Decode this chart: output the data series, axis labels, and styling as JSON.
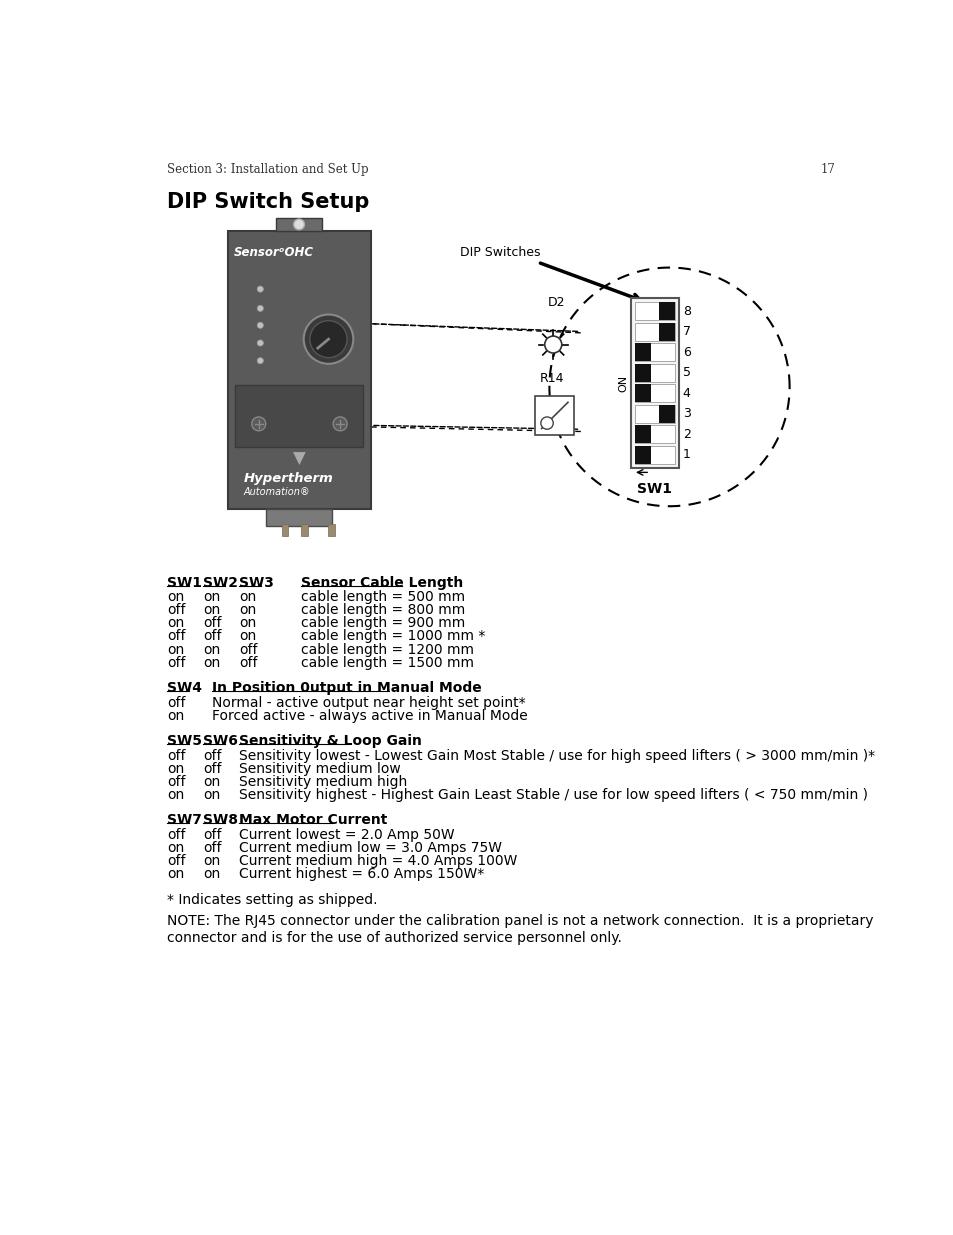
{
  "page_header": "Section 3: Installation and Set Up",
  "page_number": "17",
  "title": "DIP Switch Setup",
  "bg_color": "#ffffff",
  "text_color": "#000000",
  "section_blocks": [
    {
      "headers": [
        "SW1",
        "SW2",
        "SW3",
        "Sensor Cable Length"
      ],
      "rows": [
        [
          "on",
          "on",
          "on",
          "cable length = 500 mm"
        ],
        [
          "off",
          "on",
          "on",
          "cable length = 800 mm"
        ],
        [
          "on",
          "off",
          "on",
          "cable length = 900 mm"
        ],
        [
          "off",
          "off",
          "on",
          "cable length = 1000 mm *"
        ],
        [
          "on",
          "on",
          "off",
          "cable length = 1200 mm"
        ],
        [
          "off",
          "on",
          "off",
          "cable length = 1500 mm"
        ]
      ]
    },
    {
      "headers": [
        "SW4",
        "In Position 0utput in Manual Mode"
      ],
      "rows": [
        [
          "off",
          "Normal - active output near height set point*"
        ],
        [
          "on",
          "Forced active - always active in Manual Mode"
        ]
      ]
    },
    {
      "headers": [
        "SW5",
        "SW6",
        "Sensitivity & Loop Gain"
      ],
      "rows": [
        [
          "off",
          "off",
          "Sensitivity lowest - Lowest Gain Most Stable / use for high speed lifters ( > 3000 mm/min )*"
        ],
        [
          "on",
          "off",
          "Sensitivity medium low"
        ],
        [
          "off",
          "on",
          "Sensitivity medium high"
        ],
        [
          "on",
          "on",
          "Sensitivity highest - Highest Gain Least Stable / use for low speed lifters ( < 750 mm/min )"
        ]
      ]
    },
    {
      "headers": [
        "SW7",
        "SW8",
        "Max Motor Current"
      ],
      "rows": [
        [
          "off",
          "off",
          "Current lowest = 2.0 Amp 50W"
        ],
        [
          "on",
          "off",
          "Current medium low = 3.0 Amps 75W"
        ],
        [
          "off",
          "on",
          "Current medium high = 4.0 Amps 100W"
        ],
        [
          "on",
          "on",
          "Current highest = 6.0 Amps 150W*"
        ]
      ]
    }
  ],
  "footnote": "* Indicates setting as shipped.",
  "note": "NOTE: The RJ45 connector under the calibration panel is not a network connection.  It is a proprietary\nconnector and is for the use of authorized service personnel only.",
  "dip_label": "DIP Switches",
  "sw_label": "SW1",
  "on_label": "ON",
  "switch_black_right": [
    true,
    true,
    false,
    false,
    false,
    true,
    false,
    false
  ]
}
